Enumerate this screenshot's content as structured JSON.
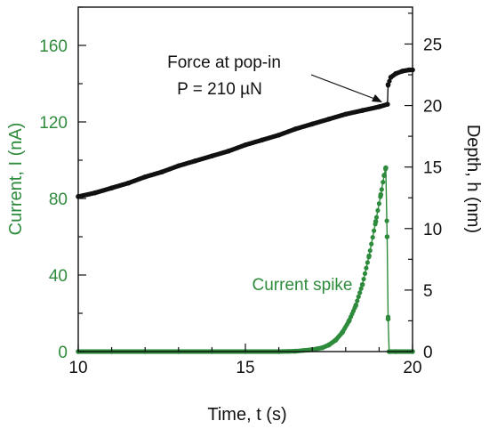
{
  "chart_data": {
    "type": "scatter",
    "title": "",
    "xlabel": "Time, t (s)",
    "ylabel_left": "Current, I (nA)",
    "ylabel_right": "Depth, h (nm)",
    "xlim": [
      10,
      20
    ],
    "ylim_left": [
      0,
      180
    ],
    "ylim_right": [
      0,
      28
    ],
    "xticks": [
      10,
      15,
      20
    ],
    "yticks_left": [
      0,
      40,
      80,
      120,
      160
    ],
    "yticks_right": [
      0,
      5,
      10,
      15,
      20,
      25
    ],
    "grid": false,
    "colors": {
      "current": "#2e8b3c",
      "depth": "#111111",
      "axis": "#111111"
    },
    "series": [
      {
        "name": "Current",
        "axis": "left",
        "color": "#2e8b3c",
        "x": [
          10.0,
          11.0,
          12.0,
          13.0,
          14.0,
          15.0,
          16.0,
          16.5,
          17.0,
          17.3,
          17.5,
          17.7,
          17.9,
          18.1,
          18.3,
          18.5,
          18.7,
          18.9,
          19.05,
          19.15,
          19.2,
          19.24,
          19.27,
          19.3,
          19.5,
          20.0
        ],
        "values": [
          0,
          0,
          0,
          0,
          0,
          0,
          0,
          0.2,
          1,
          2,
          3.5,
          6,
          10,
          16,
          24,
          35,
          50,
          68,
          82,
          92,
          96,
          60,
          17,
          0,
          0,
          0
        ]
      },
      {
        "name": "Depth",
        "axis": "right",
        "color": "#111111",
        "x": [
          10.0,
          10.5,
          11.0,
          11.5,
          12.0,
          12.5,
          13.0,
          13.5,
          14.0,
          14.5,
          15.0,
          15.5,
          16.0,
          16.5,
          17.0,
          17.5,
          18.0,
          18.5,
          19.0,
          19.25,
          19.27,
          19.35,
          19.5,
          19.7,
          19.9,
          20.0
        ],
        "values": [
          12.6,
          12.9,
          13.3,
          13.7,
          14.2,
          14.6,
          15.1,
          15.5,
          15.9,
          16.3,
          16.8,
          17.2,
          17.6,
          18.1,
          18.5,
          18.9,
          19.3,
          19.6,
          19.9,
          20.1,
          21.7,
          22.3,
          22.6,
          22.8,
          22.9,
          22.9
        ]
      }
    ],
    "annotations": {
      "popin_line1": "Force at pop-in",
      "popin_line2": "P = 210 µN",
      "spike_label": "Current spike"
    }
  }
}
